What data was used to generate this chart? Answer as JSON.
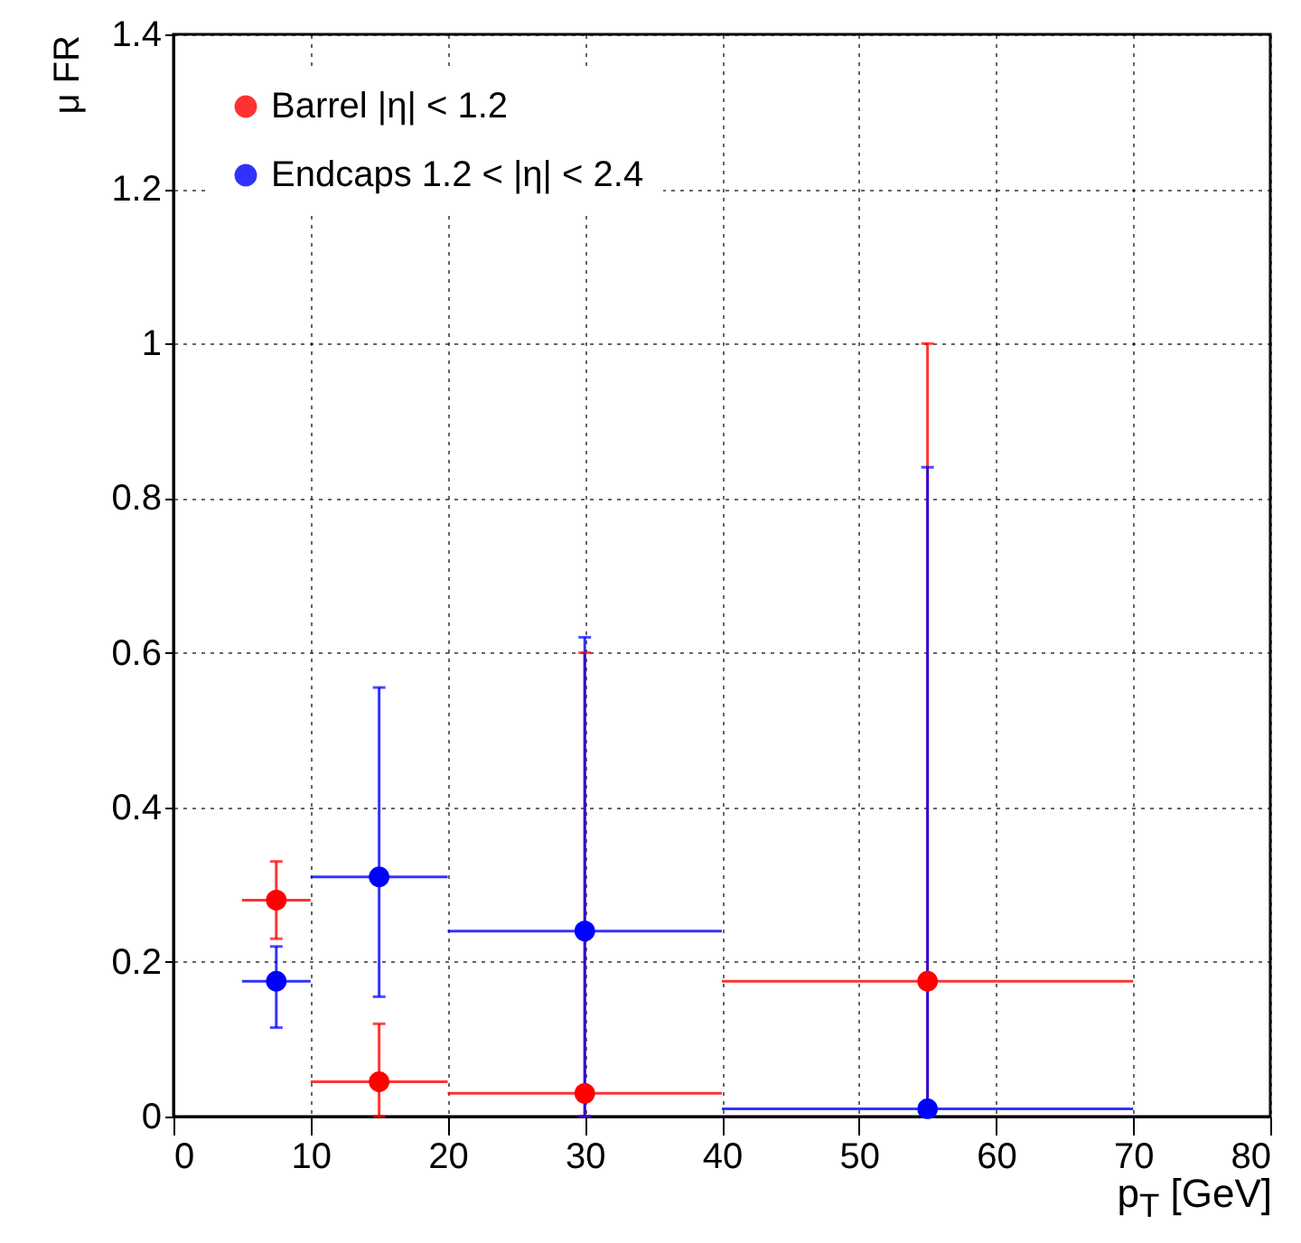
{
  "chart_data": {
    "type": "scatter",
    "xlabel": "p$_{T}$ [GeV]",
    "ylabel": "μ FR",
    "xlim": [
      0,
      80
    ],
    "xticks": [
      0,
      10,
      20,
      30,
      40,
      50,
      60,
      70,
      80
    ],
    "ylim": [
      0,
      1.4
    ],
    "yticks": [
      0,
      0.2,
      0.4,
      0.6,
      0.8,
      1,
      1.2,
      1.4
    ],
    "grid": true,
    "legend": "top left",
    "marker": "circle",
    "series": [
      {
        "name": "Barrel |η| < 1.2",
        "color": "#ff0000",
        "x": [
          7.5,
          15,
          30,
          55
        ],
        "values": [
          0.28,
          0.045,
          0.03,
          0.175
        ],
        "errors": [
          [
            0.23,
            0.33
          ],
          [
            0,
            0.12
          ],
          [
            0,
            0.6
          ],
          [
            0,
            1.0
          ]
        ],
        "xerrors": [
          2.5,
          5,
          10,
          15
        ]
      },
      {
        "name": "Endcaps 1.2 < |η| < 2.4",
        "color": "#0000ff",
        "x": [
          7.5,
          15,
          30,
          55
        ],
        "values": [
          0.175,
          0.31,
          0.24,
          0.01
        ],
        "errors": [
          [
            0.115,
            0.22
          ],
          [
            0.155,
            0.555
          ],
          [
            0,
            0.62
          ],
          [
            0,
            0.84
          ]
        ],
        "xerrors": [
          2.5,
          5,
          10,
          15
        ]
      }
    ]
  }
}
